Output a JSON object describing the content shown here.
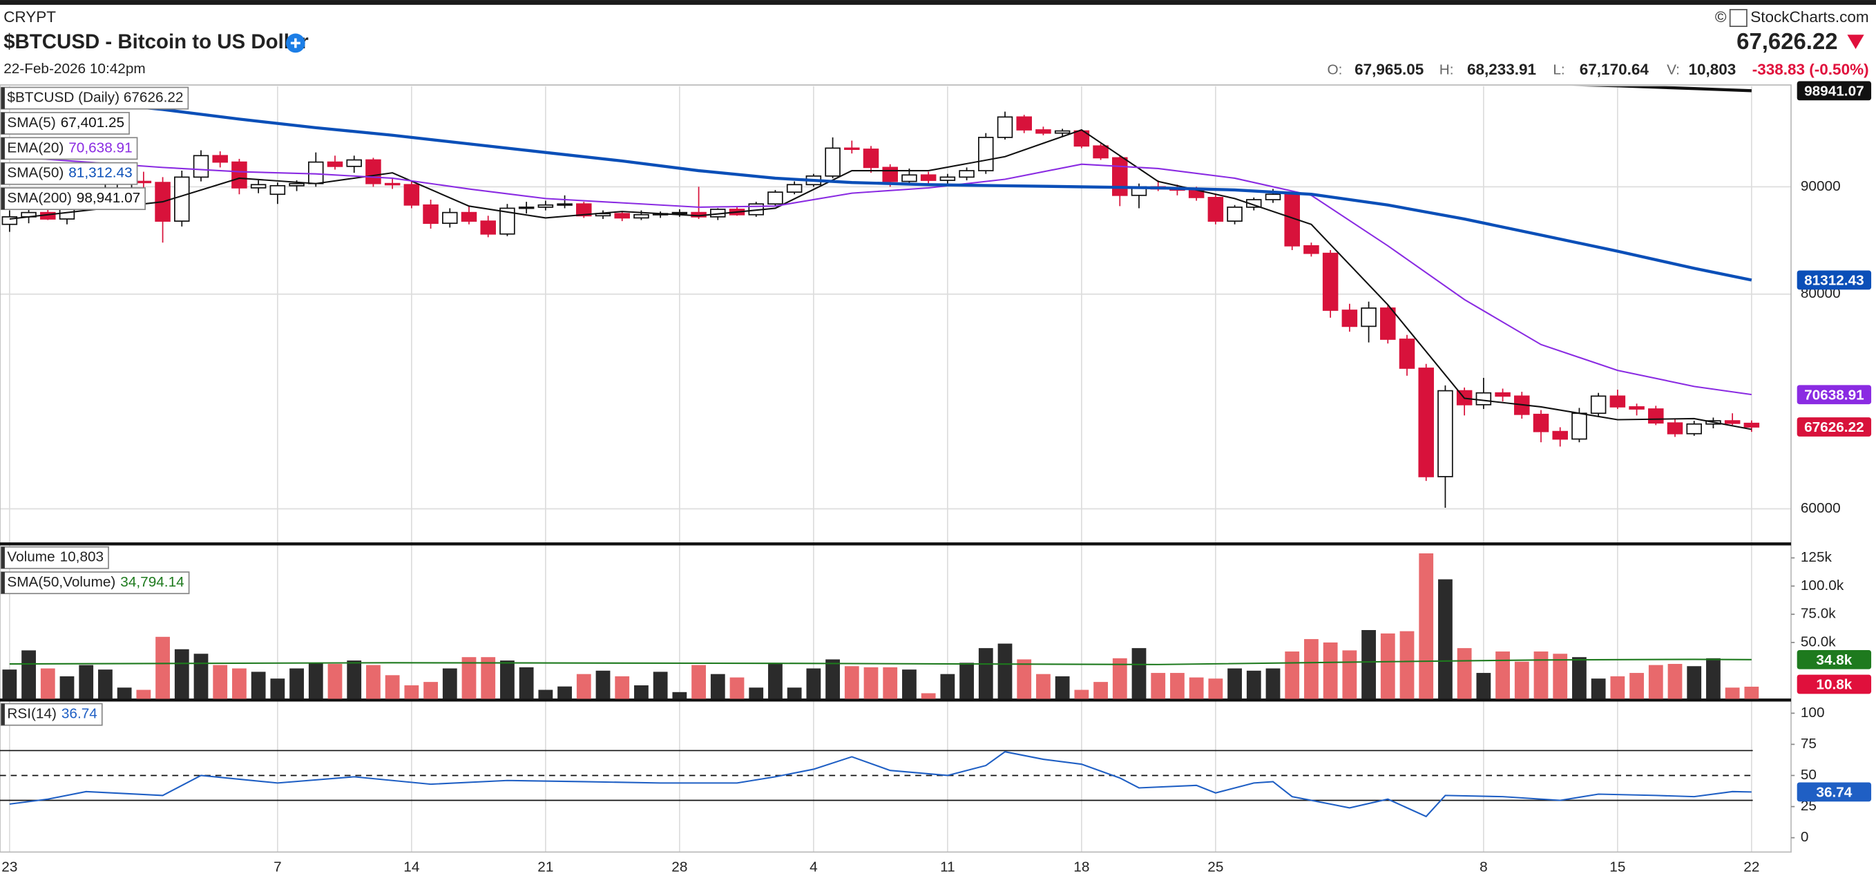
{
  "header": {
    "exchange": "CRYPT",
    "title": "$BTCUSD - Bitcoin to US Dollar",
    "timestamp": "22-Feb-2026 10:42pm",
    "copyright": "©",
    "brand": "StockCharts.com",
    "last": "67,626.22",
    "open_label": "O:",
    "open": "67,965.05",
    "high_label": "H:",
    "high": "68,233.91",
    "low_label": "L:",
    "low": "67,170.64",
    "volume_label": "V:",
    "volume": "10,803",
    "change": "-338.83 (-0.50%)"
  },
  "chart_data": [
    {
      "type": "candlestick",
      "price_legend": "$BTCUSD (Daily) 67626.22",
      "up_color": "#ffffff",
      "down_color": "#d8123b",
      "ylim": [
        56900,
        99370
      ],
      "yticks": [
        60000,
        80000,
        90000
      ],
      "grid": true,
      "categories": [
        "23",
        null,
        null,
        null,
        null,
        null,
        null,
        null,
        null,
        null,
        null,
        null,
        null,
        null,
        "7",
        null,
        null,
        null,
        null,
        null,
        null,
        "14",
        null,
        null,
        null,
        null,
        null,
        null,
        "21",
        null,
        null,
        null,
        null,
        null,
        null,
        "28",
        null,
        null,
        null,
        null,
        null,
        null,
        "4",
        null,
        null,
        null,
        null,
        null,
        null,
        "11",
        null,
        null,
        null,
        null,
        null,
        null,
        "18",
        null,
        null,
        null,
        null,
        null,
        null,
        "25",
        null,
        null,
        null,
        null,
        null,
        null,
        null,
        null,
        null,
        null,
        null,
        null,
        null,
        "8",
        null,
        null,
        null,
        null,
        null,
        null,
        "15",
        null,
        null,
        null,
        null,
        null,
        null,
        "22"
      ],
      "ohlc": [
        [
          86500,
          87800,
          85800,
          87200
        ],
        [
          87200,
          88200,
          86600,
          87600
        ],
        [
          87600,
          88400,
          86900,
          87000
        ],
        [
          87000,
          88900,
          86500,
          88500
        ],
        [
          88500,
          89500,
          87800,
          89100
        ],
        [
          89100,
          90200,
          88400,
          89600
        ],
        [
          89600,
          91000,
          89000,
          90500
        ],
        [
          90500,
          91400,
          89800,
          90400
        ],
        [
          90400,
          90900,
          84800,
          86800
        ],
        [
          86800,
          91500,
          86300,
          90900
        ],
        [
          90900,
          93400,
          90500,
          92900
        ],
        [
          92900,
          93300,
          91800,
          92300
        ],
        [
          92300,
          92600,
          89300,
          89900
        ],
        [
          89900,
          90600,
          89400,
          90200
        ],
        [
          89300,
          90400,
          88400,
          90100
        ],
        [
          90100,
          90600,
          89600,
          90300
        ],
        [
          90300,
          93200,
          90000,
          92300
        ],
        [
          92300,
          92900,
          91600,
          91900
        ],
        [
          91900,
          92900,
          91300,
          92500
        ],
        [
          92500,
          92700,
          90000,
          90300
        ],
        [
          90300,
          90800,
          89800,
          90200
        ],
        [
          90200,
          90500,
          88000,
          88300
        ],
        [
          88300,
          88800,
          86100,
          86600
        ],
        [
          86600,
          88000,
          86200,
          87600
        ],
        [
          87600,
          88200,
          86500,
          86800
        ],
        [
          86800,
          87300,
          85300,
          85600
        ],
        [
          85600,
          88400,
          85400,
          88000
        ],
        [
          88000,
          88600,
          87500,
          88100
        ],
        [
          88100,
          88700,
          87800,
          88300
        ],
        [
          88300,
          89200,
          88000,
          88400
        ],
        [
          88400,
          88600,
          87100,
          87300
        ],
        [
          87300,
          87800,
          87000,
          87500
        ],
        [
          87500,
          87700,
          86800,
          87100
        ],
        [
          87100,
          87800,
          86900,
          87400
        ],
        [
          87400,
          87700,
          87100,
          87500
        ],
        [
          87500,
          87900,
          87200,
          87600
        ],
        [
          87600,
          90000,
          87000,
          87200
        ],
        [
          87200,
          88000,
          86900,
          87900
        ],
        [
          87900,
          88100,
          87300,
          87400
        ],
        [
          87400,
          88600,
          87200,
          88400
        ],
        [
          88400,
          89700,
          88200,
          89500
        ],
        [
          89500,
          90500,
          89300,
          90200
        ],
        [
          90200,
          91200,
          90000,
          91000
        ],
        [
          91000,
          94600,
          90800,
          93600
        ],
        [
          93600,
          94300,
          93100,
          93500
        ],
        [
          93500,
          93800,
          91300,
          91800
        ],
        [
          91800,
          92100,
          90000,
          90500
        ],
        [
          90500,
          91700,
          90200,
          91100
        ],
        [
          91100,
          91400,
          90300,
          90600
        ],
        [
          90600,
          91200,
          90300,
          90900
        ],
        [
          90900,
          91800,
          90600,
          91500
        ],
        [
          91500,
          95000,
          91200,
          94600
        ],
        [
          94600,
          97000,
          94400,
          96500
        ],
        [
          96500,
          96700,
          95000,
          95300
        ],
        [
          95300,
          95600,
          94800,
          95000
        ],
        [
          95000,
          95400,
          94700,
          95200
        ],
        [
          95200,
          95300,
          93600,
          93800
        ],
        [
          93800,
          94000,
          92500,
          92700
        ],
        [
          92700,
          92900,
          88200,
          89200
        ],
        [
          89200,
          90300,
          88000,
          90000
        ],
        [
          90000,
          90600,
          89600,
          89800
        ],
        [
          89800,
          90200,
          89200,
          89700
        ],
        [
          89700,
          90000,
          88700,
          89000
        ],
        [
          89000,
          89300,
          86500,
          86800
        ],
        [
          86800,
          88300,
          86500,
          88100
        ],
        [
          88100,
          89000,
          87800,
          88800
        ],
        [
          88800,
          89800,
          88500,
          89300
        ],
        [
          89300,
          89400,
          84100,
          84500
        ],
        [
          84500,
          84800,
          83500,
          83800
        ],
        [
          83800,
          84100,
          77800,
          78500
        ],
        [
          78500,
          79100,
          76500,
          77000
        ],
        [
          77000,
          79300,
          75500,
          78700
        ],
        [
          78700,
          79000,
          75400,
          75800
        ],
        [
          75800,
          76200,
          72400,
          73100
        ],
        [
          73100,
          73500,
          62600,
          63000
        ],
        [
          63000,
          71500,
          60100,
          71000
        ],
        [
          71000,
          71300,
          68700,
          69700
        ],
        [
          69700,
          72200,
          69300,
          70800
        ],
        [
          70800,
          71200,
          70000,
          70500
        ],
        [
          70500,
          70900,
          68400,
          68800
        ],
        [
          68800,
          69200,
          66200,
          67200
        ],
        [
          67200,
          67600,
          65800,
          66500
        ],
        [
          66500,
          69400,
          66200,
          68900
        ],
        [
          68900,
          70800,
          68600,
          70500
        ],
        [
          70500,
          71100,
          69300,
          69500
        ],
        [
          69500,
          69800,
          68700,
          69300
        ],
        [
          69300,
          69600,
          67800,
          68000
        ],
        [
          68000,
          68400,
          66700,
          67000
        ],
        [
          67000,
          68200,
          66800,
          67900
        ],
        [
          67900,
          68500,
          67500,
          68200
        ],
        [
          68200,
          68900,
          67800,
          67965.05
        ],
        [
          67965.05,
          68233.91,
          67170.64,
          67626.22
        ]
      ],
      "indicators": [
        {
          "name": "SMA(5)",
          "legend_value": "67,401.25",
          "color": "#111111",
          "width": 1.2,
          "axis_tag": false,
          "x": [
            0,
            4,
            8,
            12,
            16,
            20,
            24,
            28,
            32,
            36,
            40,
            44,
            48,
            52,
            56,
            60,
            64,
            68,
            72,
            76,
            80,
            84,
            88,
            91
          ],
          "values": [
            87000,
            87800,
            88600,
            90800,
            90300,
            91300,
            88200,
            87100,
            87700,
            87300,
            88000,
            91500,
            91500,
            92800,
            95300,
            90500,
            88900,
            86500,
            79000,
            70300,
            69500,
            68300,
            68400,
            67401.25
          ]
        },
        {
          "name": "EMA(20)",
          "legend_value": "70,638.91",
          "color": "#8a2be2",
          "width": 1.2,
          "axis_tag": true,
          "x": [
            0,
            4,
            8,
            12,
            16,
            20,
            24,
            28,
            32,
            36,
            40,
            44,
            48,
            52,
            56,
            60,
            64,
            68,
            72,
            76,
            80,
            84,
            88,
            91
          ],
          "values": [
            92800,
            92300,
            91800,
            91400,
            91200,
            90800,
            89800,
            88900,
            88500,
            88100,
            88200,
            89400,
            89900,
            90700,
            92100,
            91700,
            90800,
            89200,
            84500,
            79500,
            75300,
            72900,
            71400,
            70638.91
          ]
        },
        {
          "name": "SMA(50)",
          "legend_value": "81,312.43",
          "color": "#0b4fb8",
          "width": 2.5,
          "axis_tag": true,
          "x": [
            0,
            4,
            8,
            12,
            16,
            20,
            24,
            28,
            32,
            36,
            40,
            44,
            48,
            52,
            56,
            60,
            64,
            68,
            72,
            76,
            80,
            84,
            88,
            91
          ],
          "values": [
            98500,
            97900,
            97200,
            96300,
            95500,
            94800,
            94000,
            93200,
            92400,
            91500,
            90800,
            90400,
            90200,
            90100,
            90000,
            89900,
            89700,
            89300,
            88300,
            87000,
            85500,
            84000,
            82400,
            81312.43
          ]
        },
        {
          "name": "SMA(200)",
          "legend_value": "98,941.07",
          "color": "#111111",
          "width": 2.5,
          "axis_tag": true,
          "x": [
            76,
            80,
            84,
            88,
            91
          ],
          "values": [
            99900,
            99600,
            99400,
            99150,
            98941.07
          ]
        }
      ]
    },
    {
      "type": "bar",
      "name": "Volume",
      "legend_value": "10,803",
      "up_color": "#2b2b2b",
      "down_color": "#e8696c",
      "ylim": [
        0,
        135800
      ],
      "yticks": [
        {
          "value": 125000,
          "label": "125k"
        },
        {
          "value": 100000,
          "label": "100.0k"
        },
        {
          "value": 75000,
          "label": "75.0k"
        },
        {
          "value": 50000,
          "label": "50.0k"
        }
      ],
      "values": [
        26000,
        43000,
        27000,
        20000,
        30000,
        26000,
        10000,
        8000,
        55000,
        44000,
        40000,
        30000,
        27000,
        24000,
        18000,
        27000,
        32000,
        31000,
        34000,
        30000,
        21000,
        12000,
        15000,
        27000,
        37000,
        37000,
        34000,
        28000,
        8000,
        11000,
        22000,
        25000,
        20000,
        12000,
        24000,
        6000,
        30000,
        22000,
        19000,
        10000,
        31000,
        10000,
        27000,
        35000,
        29000,
        28000,
        28000,
        26000,
        5000,
        22000,
        32000,
        45000,
        49000,
        35000,
        22000,
        20000,
        8000,
        15000,
        36000,
        45000,
        23000,
        23000,
        19000,
        18000,
        27000,
        25000,
        27000,
        42000,
        53000,
        50000,
        43000,
        61000,
        58000,
        60000,
        129000,
        106000,
        45000,
        23000,
        42000,
        33000,
        42000,
        40000,
        37000,
        18000,
        20000,
        23000,
        30000,
        31000,
        29000,
        36000,
        10000,
        10803
      ],
      "value_labels": [
        null,
        null,
        null,
        null,
        null,
        null,
        null,
        null,
        null,
        null,
        null,
        null,
        null,
        null,
        null,
        null,
        null,
        null,
        null,
        null,
        null,
        null,
        null,
        null,
        null,
        null,
        null,
        null,
        null,
        null,
        null,
        null,
        null,
        null,
        null,
        null,
        null,
        null,
        null,
        null,
        null,
        null,
        null,
        null,
        null,
        null,
        null,
        null,
        null,
        null,
        null,
        null,
        null,
        null,
        null,
        null,
        null,
        null,
        null,
        null,
        null,
        null,
        null,
        null,
        null,
        null,
        null,
        null,
        null,
        null,
        null,
        null,
        null,
        null,
        null,
        null,
        null,
        null,
        null,
        null,
        null,
        null,
        null,
        null,
        null,
        null,
        null,
        null,
        null,
        null,
        null,
        "10.8k"
      ],
      "overlay": {
        "name": "SMA(50,Volume)",
        "legend_value": "34,794.14",
        "color": "#1e7a1e",
        "x": [
          0,
          20,
          40,
          60,
          72,
          80,
          88,
          91
        ],
        "values": [
          31000,
          32000,
          31500,
          30500,
          33000,
          34500,
          35000,
          34794.14
        ],
        "value_labels": [
          null,
          null,
          null,
          null,
          null,
          null,
          null,
          "34.8k"
        ]
      }
    },
    {
      "type": "line",
      "name": "RSI(14)",
      "legend_value": "36.74",
      "color": "#1f5fc4",
      "ylim": [
        -11.5,
        109.6
      ],
      "yticks": [
        100,
        75,
        50,
        25,
        0
      ],
      "reference_lines": [
        70,
        50,
        30
      ],
      "x": [
        0,
        2,
        4,
        8,
        10,
        14,
        18,
        22,
        26,
        30,
        34,
        38,
        40,
        42,
        44,
        46,
        49,
        51,
        52,
        54,
        56,
        58,
        59,
        62,
        63,
        65,
        66,
        67,
        69,
        70,
        72,
        74,
        75,
        78,
        81,
        83,
        86,
        88,
        90,
        91
      ],
      "values": [
        27,
        31,
        37,
        34,
        50,
        44,
        49,
        43,
        46,
        45,
        44,
        44,
        49,
        55,
        65,
        54,
        50,
        58,
        69,
        63,
        59,
        48,
        40,
        42,
        36,
        44,
        45,
        33,
        27,
        24,
        31,
        17,
        34,
        33,
        30,
        35,
        34,
        33,
        37,
        36.74
      ]
    }
  ]
}
